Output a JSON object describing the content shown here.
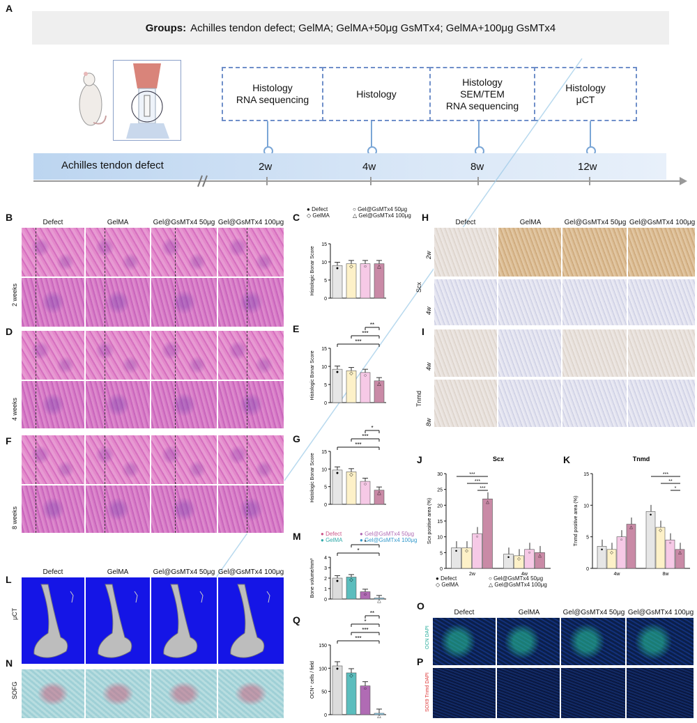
{
  "panel_labels": {
    "A": "A",
    "B": "B",
    "C": "C",
    "D": "D",
    "E": "E",
    "F": "F",
    "G": "G",
    "H": "H",
    "I": "I",
    "J": "J",
    "K": "K",
    "L": "L",
    "M": "M",
    "N": "N",
    "O": "O",
    "P": "P",
    "Q": "Q"
  },
  "groups": {
    "label": "Groups:",
    "text": "Achilles tendon defect; GelMA; GelMA+50μg GsMTx4; GelMA+100μg GsMTx4"
  },
  "timeline": {
    "start": "Achilles tendon defect",
    "points": [
      {
        "time": "2w",
        "analysis": "Histology\nRNA sequencing"
      },
      {
        "time": "4w",
        "analysis": "Histology"
      },
      {
        "time": "8w",
        "analysis": "Histology\nSEM/TEM\nRNA sequencing"
      },
      {
        "time": "12w",
        "analysis": "Histology\nμCT"
      }
    ]
  },
  "histology_columns": [
    "Defect",
    "GelMA",
    "Gel@GsMTx4 50μg",
    "Gel@GsMTx4 100μg"
  ],
  "histology_rows": {
    "B": "2 weeks",
    "D": "4 weeks",
    "F": "8 weeks"
  },
  "ihc_columns": [
    "Defect",
    "GelMA",
    "Gel@GsMTx4 50μg",
    "Gel@GsMTx4 100μg"
  ],
  "ihc_rows": {
    "scx": "Scx",
    "tnmd": "Tnmd",
    "t2w": "2w",
    "t4w": "4w",
    "t4w_b": "4w",
    "t8w": "8w"
  },
  "ct_columns": [
    "Defect",
    "GelMA",
    "Gel@GsMTx4 50μg",
    "Gel@GsMTx4 100μg"
  ],
  "ct_rows": {
    "ct": "μCT",
    "sofg": "SOFG"
  },
  "fluo_columns": [
    "Defect",
    "GelMA",
    "Gel@GsMTx4 50μg",
    "Gel@GsMTx4 100μg"
  ],
  "fluo_rows": {
    "o": "OCN DAPI",
    "p": "SOX9 Tnmd DAPI"
  },
  "legend_CEG": {
    "defect": "Defect",
    "gelma": "GelMA",
    "g50": "Gel@GsMTx4 50μg",
    "g100": "Gel@GsMTx4 100μg"
  },
  "legend_JK": {
    "defect": "Defect",
    "gelma": "GelMA",
    "g50": "Gel@GsMTx4 50μg",
    "g100": "Gel@GsMTx4 100μg"
  },
  "legend_MQ": {
    "defect": "Defect",
    "gelma": "GelMA",
    "g50": "Gel@GsMTx4 50μg",
    "g100": "Gel@GsMTx4 100μg"
  },
  "colors": {
    "defect": "#e6e6e6",
    "gelma": "#fdf1c8",
    "g50": "#f6c9e6",
    "g100": "#c98aa6",
    "m_defect": "#dcdcdc",
    "m_gelma": "#5bbdbd",
    "m_g50": "#b06bb4",
    "m_g100": "#8fd3f0"
  },
  "chart_data": [
    {
      "id": "C",
      "type": "bar",
      "categories": [
        "Defect",
        "GelMA",
        "Gel@GsMTx4 50μg",
        "Gel@GsMTx4 100μg"
      ],
      "values": [
        9,
        9.5,
        9.5,
        9.5
      ],
      "ylabel": "Histologic Bonar Score",
      "ylim": [
        0,
        15
      ],
      "yticks": [
        0,
        5,
        10,
        15
      ],
      "sig": []
    },
    {
      "id": "E",
      "type": "bar",
      "categories": [
        "Defect",
        "GelMA",
        "Gel@GsMTx4 50μg",
        "Gel@GsMTx4 100μg"
      ],
      "values": [
        9.2,
        8.8,
        8.3,
        6
      ],
      "ylabel": "Histologic Bonar Score",
      "ylim": [
        0,
        15
      ],
      "yticks": [
        0,
        5,
        10,
        15
      ],
      "sig": [
        "***",
        "***",
        "**"
      ]
    },
    {
      "id": "G",
      "type": "bar",
      "categories": [
        "Defect",
        "GelMA",
        "Gel@GsMTx4 50μg",
        "Gel@GsMTx4 100μg"
      ],
      "values": [
        9.7,
        9.2,
        6.5,
        4
      ],
      "ylabel": "Histologic Bonar Score",
      "ylim": [
        0,
        15
      ],
      "yticks": [
        0,
        5,
        10,
        15
      ],
      "sig": [
        "***",
        "***",
        "*"
      ]
    },
    {
      "id": "J",
      "type": "bar",
      "title": "Scx",
      "x": [
        "2w",
        "4w"
      ],
      "series": [
        {
          "name": "Defect",
          "values": [
            6.5,
            4.5
          ]
        },
        {
          "name": "GelMA",
          "values": [
            6.5,
            4
          ]
        },
        {
          "name": "Gel@GsMTx4 50μg",
          "values": [
            11,
            6
          ]
        },
        {
          "name": "Gel@GsMTx4 100μg",
          "values": [
            22,
            5
          ]
        }
      ],
      "ylabel": "Scx positive area (%)",
      "ylim": [
        0,
        30
      ],
      "yticks": [
        0,
        5,
        10,
        15,
        20,
        25,
        30
      ],
      "sig": [
        "***",
        "***",
        "***"
      ]
    },
    {
      "id": "K",
      "type": "bar",
      "title": "Tnmd",
      "x": [
        "4w",
        "8w"
      ],
      "series": [
        {
          "name": "Defect",
          "values": [
            3.5,
            9
          ]
        },
        {
          "name": "GelMA",
          "values": [
            3,
            6.5
          ]
        },
        {
          "name": "Gel@GsMTx4 50μg",
          "values": [
            5,
            4.5
          ]
        },
        {
          "name": "Gel@GsMTx4 100μg",
          "values": [
            7,
            3
          ]
        }
      ],
      "ylabel": "Tnmd positive area (%)",
      "ylim": [
        0,
        15
      ],
      "yticks": [
        0,
        5,
        10,
        15
      ],
      "sig": [
        "***",
        "**",
        "*"
      ]
    },
    {
      "id": "M",
      "type": "bar",
      "categories": [
        "Defect",
        "GelMA",
        "Gel@GsMTx4 50μg",
        "Gel@GsMTx4 100μg"
      ],
      "values": [
        2,
        2.1,
        0.7,
        0.1
      ],
      "ylabel": "Bone volume/mm³",
      "ylim": [
        0,
        4
      ],
      "yticks": [
        0,
        1,
        2,
        3,
        4
      ],
      "sig": [
        "*",
        "*"
      ]
    },
    {
      "id": "Q",
      "type": "bar",
      "categories": [
        "Defect",
        "GelMA",
        "Gel@GsMTx4 50μg",
        "Gel@GsMTx4 100μg"
      ],
      "values": [
        105,
        90,
        62,
        3
      ],
      "ylabel": "OCN⁺ cells / field",
      "ylim": [
        0,
        150
      ],
      "yticks": [
        0,
        50,
        100,
        150
      ],
      "sig": [
        "***",
        "***",
        "*",
        "**"
      ]
    }
  ]
}
